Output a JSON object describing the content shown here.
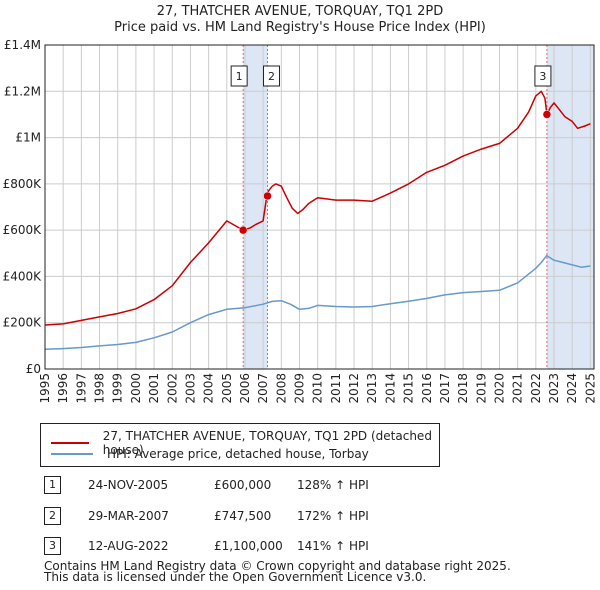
{
  "chart_data": {
    "type": "line",
    "title": "27, THATCHER AVENUE, TORQUAY, TQ1 2PD",
    "subtitle": "Price paid vs. HM Land Registry's House Price Index (HPI)",
    "xlim": [
      1995,
      2025.2
    ],
    "ylim": [
      0,
      1400000
    ],
    "y_ticks": [
      {
        "value": 0,
        "label": "£0"
      },
      {
        "value": 200000,
        "label": "£200K"
      },
      {
        "value": 400000,
        "label": "£400K"
      },
      {
        "value": 600000,
        "label": "£600K"
      },
      {
        "value": 800000,
        "label": "£800K"
      },
      {
        "value": 1000000,
        "label": "£1M"
      },
      {
        "value": 1200000,
        "label": "£1.2M"
      },
      {
        "value": 1400000,
        "label": "£1.4M"
      }
    ],
    "x_ticks": [
      "1995",
      "1996",
      "1997",
      "1998",
      "1999",
      "2000",
      "2001",
      "2002",
      "2003",
      "2004",
      "2005",
      "2006",
      "2007",
      "2008",
      "2009",
      "2010",
      "2011",
      "2012",
      "2013",
      "2014",
      "2015",
      "2016",
      "2017",
      "2018",
      "2019",
      "2020",
      "2021",
      "2022",
      "2023",
      "2024",
      "2025"
    ],
    "grid": true,
    "shaded_periods": [
      [
        2005.9,
        2007.24
      ],
      [
        2022.61,
        2025.2
      ]
    ],
    "series": [
      {
        "name": "27, THATCHER AVENUE, TORQUAY, TQ1 2PD (detached house)",
        "color": "#cc0000",
        "x": [
          1995.0,
          1996.0,
          1997.0,
          1998.0,
          1999.0,
          2000.0,
          2001.0,
          2002.0,
          2003.0,
          2004.0,
          2005.0,
          2005.9,
          2006.3,
          2006.6,
          2007.0,
          2007.2,
          2007.3,
          2007.5,
          2007.7,
          2008.0,
          2008.3,
          2008.6,
          2008.9,
          2009.2,
          2009.5,
          2010.0,
          2011.0,
          2012.0,
          2013.0,
          2014.0,
          2015.0,
          2016.0,
          2017.0,
          2018.0,
          2019.0,
          2020.0,
          2021.0,
          2021.6,
          2022.0,
          2022.3,
          2022.5,
          2022.61,
          2022.8,
          2023.0,
          2023.3,
          2023.6,
          2024.0,
          2024.3,
          2024.7,
          2025.0
        ],
        "values": [
          190000,
          195000,
          210000,
          225000,
          240000,
          260000,
          300000,
          360000,
          460000,
          545000,
          640000,
          600000,
          610000,
          625000,
          640000,
          747500,
          770000,
          790000,
          800000,
          790000,
          740000,
          695000,
          672000,
          690000,
          715000,
          740000,
          730000,
          730000,
          725000,
          760000,
          800000,
          850000,
          880000,
          920000,
          950000,
          975000,
          1040000,
          1110000,
          1180000,
          1200000,
          1170000,
          1100000,
          1130000,
          1150000,
          1120000,
          1090000,
          1070000,
          1040000,
          1050000,
          1060000
        ]
      },
      {
        "name": "HPI: Average price, detached house, Torbay",
        "color": "#6699cc",
        "x": [
          1995.0,
          1996.0,
          1997.0,
          1998.0,
          1999.0,
          2000.0,
          2001.0,
          2002.0,
          2003.0,
          2004.0,
          2005.0,
          2006.0,
          2007.0,
          2007.5,
          2008.0,
          2008.5,
          2009.0,
          2009.5,
          2010.0,
          2011.0,
          2012.0,
          2013.0,
          2014.0,
          2015.0,
          2016.0,
          2017.0,
          2018.0,
          2019.0,
          2020.0,
          2021.0,
          2021.6,
          2022.0,
          2022.3,
          2022.6,
          2023.0,
          2023.5,
          2024.0,
          2024.5,
          2025.0
        ],
        "values": [
          85000,
          88000,
          93000,
          100000,
          106000,
          115000,
          135000,
          160000,
          200000,
          235000,
          258000,
          265000,
          280000,
          292000,
          295000,
          280000,
          258000,
          262000,
          275000,
          270000,
          268000,
          270000,
          282000,
          293000,
          305000,
          320000,
          330000,
          335000,
          340000,
          372000,
          410000,
          435000,
          460000,
          490000,
          470000,
          460000,
          450000,
          440000,
          445000
        ]
      }
    ],
    "sales": [
      {
        "num": "1",
        "x": 2005.9,
        "value": 600000
      },
      {
        "num": "2",
        "x": 2007.24,
        "value": 747500
      },
      {
        "num": "3",
        "x": 2022.61,
        "value": 1100000
      }
    ]
  },
  "legend": {
    "property_label": "27, THATCHER AVENUE, TORQUAY, TQ1 2PD (detached house)",
    "hpi_label": "HPI: Average price, detached house, Torbay",
    "property_color": "#cc0000",
    "hpi_color": "#6699cc"
  },
  "table": [
    {
      "num": "1",
      "date": "24-NOV-2005",
      "price": "£600,000",
      "hpi": "128% ↑ HPI"
    },
    {
      "num": "2",
      "date": "29-MAR-2007",
      "price": "£747,500",
      "hpi": "172% ↑ HPI"
    },
    {
      "num": "3",
      "date": "12-AUG-2022",
      "price": "£1,100,000",
      "hpi": "141% ↑ HPI"
    }
  ],
  "footer": {
    "line1": "Contains HM Land Registry data © Crown copyright and database right 2025.",
    "line2": "This data is licensed under the Open Government Licence v3.0."
  }
}
